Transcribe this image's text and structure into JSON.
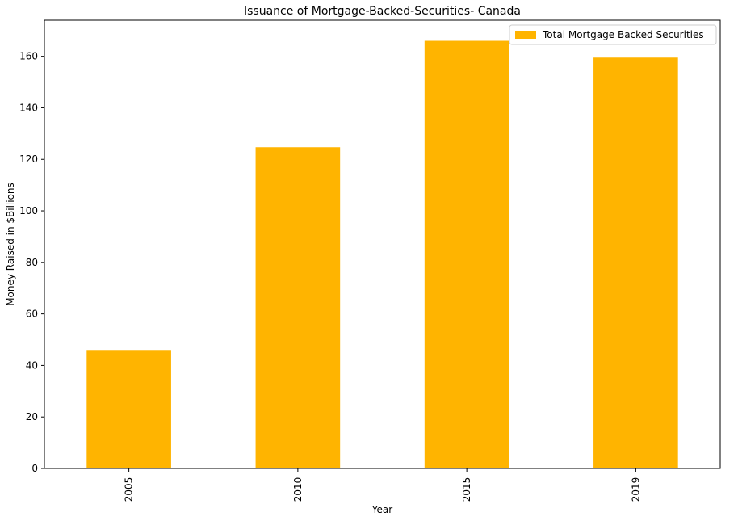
{
  "chart_data": {
    "type": "bar",
    "title": "Issuance of Mortgage-Backed-Securities- Canada",
    "xlabel": "Year",
    "ylabel": "Money Raised in $Billions",
    "categories": [
      "2005",
      "2010",
      "2015",
      "2019"
    ],
    "series": [
      {
        "name": "Total Mortgage Backed Securities",
        "values": [
          46,
          124.7,
          166,
          159.5
        ],
        "color": "#ffb400"
      }
    ],
    "ylim": [
      0,
      174
    ],
    "yticks": [
      "0",
      "20",
      "40",
      "60",
      "80",
      "100",
      "120",
      "140",
      "160"
    ],
    "legend": "top-right",
    "grid": false
  }
}
